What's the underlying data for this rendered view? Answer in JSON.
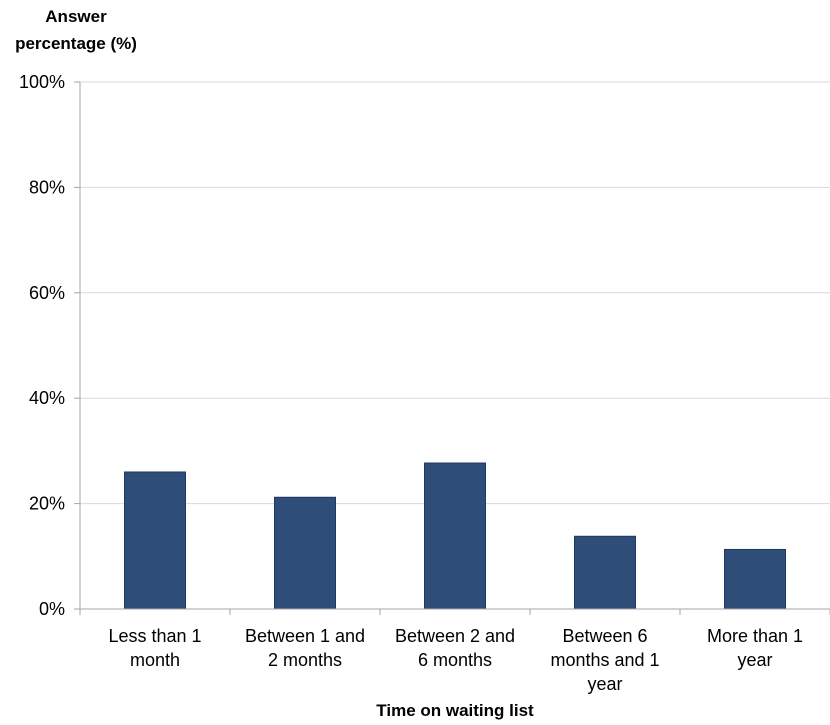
{
  "chart_data": {
    "type": "bar",
    "title": "",
    "ylabel_lines": [
      "Answer",
      "percentage (%)"
    ],
    "xlabel": "Time on waiting list",
    "categories": [
      [
        "Less than 1",
        "month"
      ],
      [
        "Between 1 and",
        "2 months"
      ],
      [
        "Between 2 and",
        "6 months"
      ],
      [
        "Between 6",
        "months and 1",
        "year"
      ],
      [
        "More than 1",
        "year"
      ]
    ],
    "values": [
      26,
      21.2,
      27.7,
      13.8,
      11.3
    ],
    "ylim": [
      0,
      100
    ],
    "yticks": [
      0,
      20,
      40,
      60,
      80,
      100
    ],
    "ytick_suffix": "%",
    "grid": true,
    "colors": {
      "bar": "#2E4D78",
      "bar_edge": "#1F3A5F",
      "grid": "#D9D9D9",
      "axis": "#A6A6A6",
      "text": "#000000"
    }
  }
}
